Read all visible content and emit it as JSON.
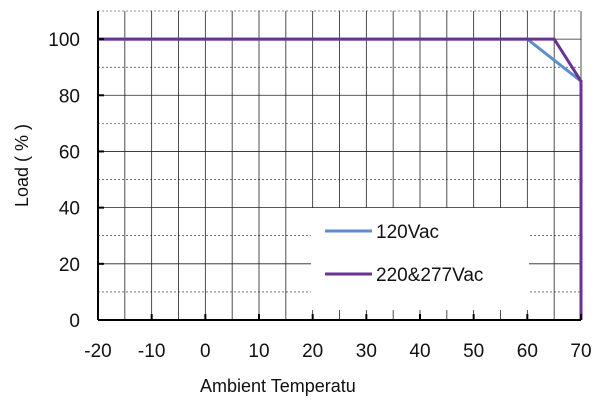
{
  "chart_data": {
    "type": "line",
    "xlabel": "Ambient Temperatu",
    "ylabel": "Load ( % )",
    "xlim": [
      -20,
      70
    ],
    "ylim": [
      0,
      110
    ],
    "x_ticks": [
      -20,
      -10,
      0,
      10,
      20,
      30,
      40,
      50,
      60,
      70
    ],
    "y_ticks": [
      0,
      20,
      40,
      60,
      80,
      100
    ],
    "grid": true,
    "legend_position": "bottom-right",
    "series": [
      {
        "name": "120Vac",
        "color": "#5b8ecb",
        "points": [
          [
            -20,
            100
          ],
          [
            60,
            100
          ],
          [
            70,
            85
          ],
          [
            70,
            0
          ]
        ]
      },
      {
        "name": "220&277Vac",
        "color": "#6b3294",
        "points": [
          [
            -20,
            100
          ],
          [
            65,
            100
          ],
          [
            70,
            85
          ],
          [
            70,
            0
          ]
        ]
      }
    ]
  }
}
